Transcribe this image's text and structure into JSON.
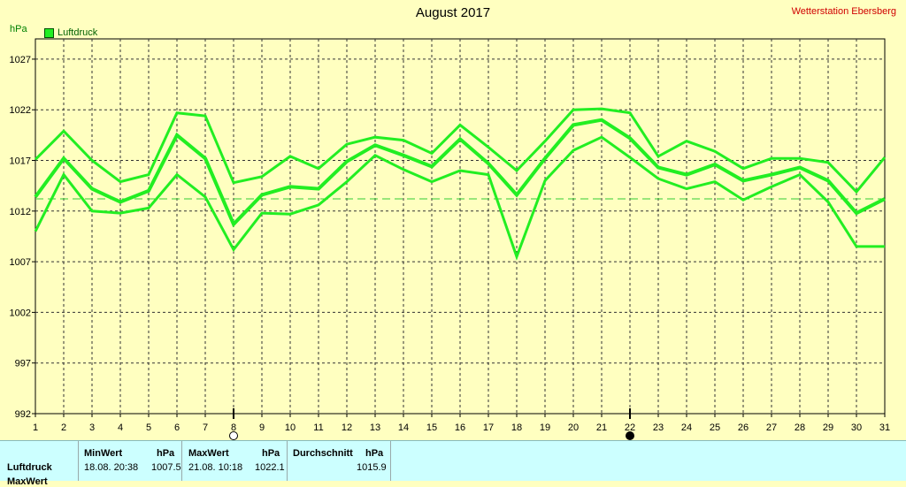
{
  "header": {
    "title": "August 2017",
    "station": "Wetterstation Ebersberg",
    "unit": "hPa",
    "legend_label": "Luftdruck"
  },
  "colors": {
    "line": "#22ee22",
    "grid": "#333333",
    "background": "#ffffc0",
    "average": "#33cc33"
  },
  "chart_data": {
    "type": "line",
    "title": "August 2017",
    "ylabel": "hPa",
    "ylim": [
      992,
      1029
    ],
    "yticks": [
      992,
      997,
      1002,
      1007,
      1012,
      1017,
      1022,
      1027
    ],
    "x": [
      1,
      2,
      3,
      4,
      5,
      6,
      7,
      8,
      9,
      10,
      11,
      12,
      13,
      14,
      15,
      16,
      17,
      18,
      19,
      20,
      21,
      22,
      23,
      24,
      25,
      26,
      27,
      28,
      29,
      30,
      31
    ],
    "series": [
      {
        "name": "Luftdruck",
        "values": [
          1013.4,
          1017.2,
          1014.2,
          1012.9,
          1014.0,
          1019.5,
          1017.2,
          1010.7,
          1013.6,
          1014.4,
          1014.2,
          1016.9,
          1018.5,
          1017.5,
          1016.4,
          1019.1,
          1016.7,
          1013.6,
          1017.2,
          1020.5,
          1021.0,
          1019.2,
          1016.3,
          1015.6,
          1016.6,
          1015.0,
          1015.6,
          1016.3,
          1015.0,
          1011.8,
          1013.2
        ]
      },
      {
        "name": "Max",
        "values": [
          1017.1,
          1019.9,
          1017.0,
          1014.9,
          1015.6,
          1021.7,
          1021.4,
          1014.8,
          1015.4,
          1017.4,
          1016.2,
          1018.6,
          1019.3,
          1019.0,
          1017.7,
          1020.5,
          1018.3,
          1016.0,
          1018.9,
          1022.0,
          1022.1,
          1021.7,
          1017.4,
          1018.9,
          1017.9,
          1016.2,
          1017.2,
          1017.2,
          1016.8,
          1013.9,
          1017.3
        ]
      },
      {
        "name": "Min",
        "values": [
          1010.0,
          1015.6,
          1012.0,
          1011.8,
          1012.3,
          1015.6,
          1013.4,
          1008.2,
          1011.8,
          1011.7,
          1012.6,
          1014.9,
          1017.5,
          1016.1,
          1014.9,
          1016.0,
          1015.6,
          1007.5,
          1015.0,
          1018.0,
          1019.3,
          1017.3,
          1015.2,
          1014.2,
          1014.9,
          1013.1,
          1014.4,
          1015.6,
          1012.9,
          1008.5,
          1008.5
        ]
      }
    ],
    "average_line": 1013.2,
    "moon_markers": [
      {
        "day": 8,
        "phase": "full"
      },
      {
        "day": 22,
        "phase": "new"
      }
    ],
    "grid": true,
    "legend": "top-left"
  },
  "stats": {
    "row_label": "Luftdruck",
    "row_label_2": "MaxWert",
    "min": {
      "head": "MinWert",
      "unit": "hPa",
      "date": "18.08. 20:38",
      "value": "1007.5"
    },
    "max": {
      "head": "MaxWert",
      "unit": "hPa",
      "date": "21.08. 10:18",
      "value": "1022.1"
    },
    "avg": {
      "head": "Durchschnitt",
      "unit": "hPa",
      "value": "1015.9"
    }
  }
}
